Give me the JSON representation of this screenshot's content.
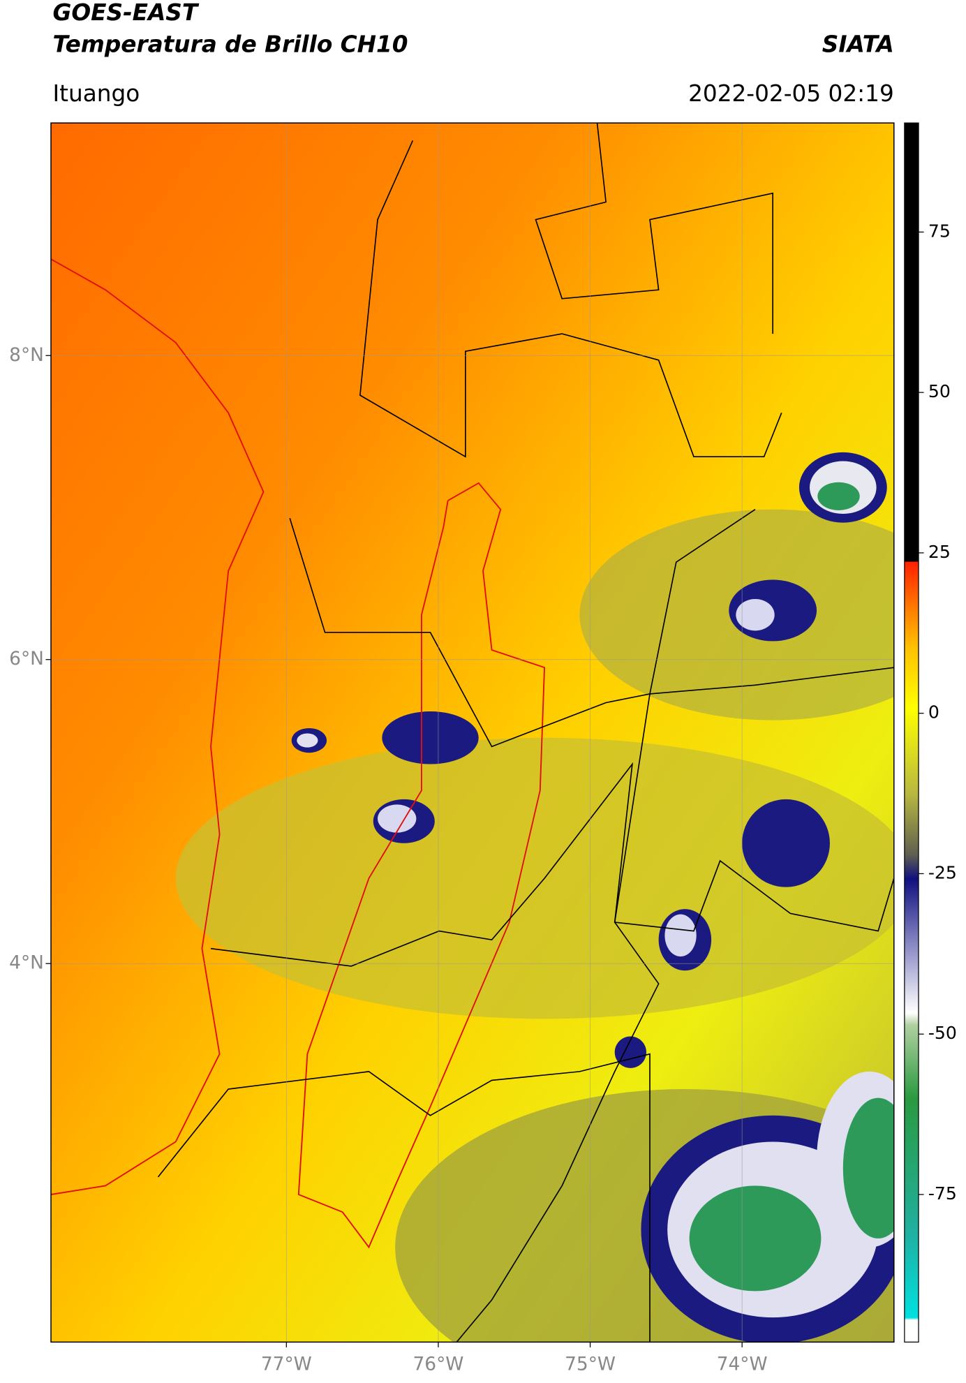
{
  "header": {
    "title": "GOES-EAST",
    "subtitle": "Temperatura de Brillo CH10",
    "agency": "SIATA",
    "location": "Ituango",
    "datetime": "2022-02-05 02:19"
  },
  "map": {
    "type": "map",
    "xlim": [
      -78.55,
      -73.0
    ],
    "ylim": [
      1.51,
      9.53
    ],
    "xticks": [
      {
        "value": -77,
        "label": "77°W"
      },
      {
        "value": -76,
        "label": "76°W"
      },
      {
        "value": -75,
        "label": "75°W"
      },
      {
        "value": -74,
        "label": "74°W"
      }
    ],
    "yticks": [
      {
        "value": 4,
        "label": "4°N"
      },
      {
        "value": 6,
        "label": "6°N"
      },
      {
        "value": 8,
        "label": "8°N"
      }
    ],
    "grid": true
  },
  "colorbar": {
    "lim": [
      -98,
      92
    ],
    "ticks": [
      75,
      50,
      25,
      0,
      -25,
      -50,
      -75
    ]
  }
}
